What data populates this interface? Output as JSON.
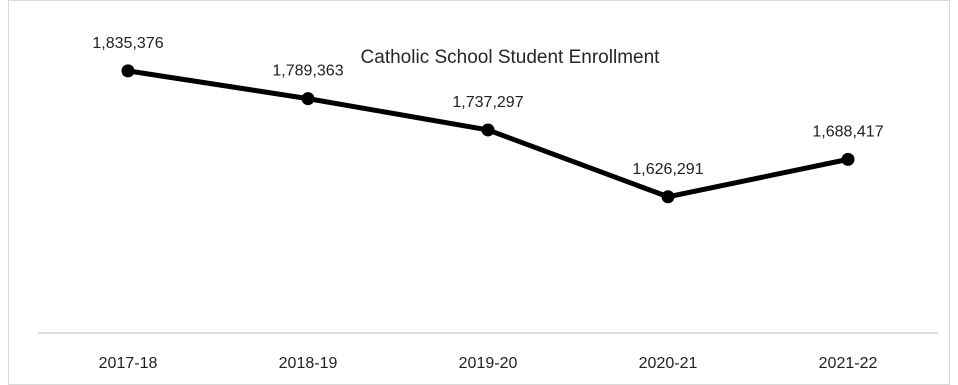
{
  "chart_data": {
    "type": "line",
    "title": "Catholic School Student Enrollment",
    "xlabel": "",
    "ylabel": "",
    "categories": [
      "2017-18",
      "2018-19",
      "2019-20",
      "2020-21",
      "2021-22"
    ],
    "series": [
      {
        "values": [
          1835376,
          1789363,
          1737297,
          1626291,
          1688417
        ],
        "labels": [
          "1,835,376",
          "1,789,363",
          "1,737,297",
          "1,626,291",
          "1,688,417"
        ]
      }
    ],
    "ylim": [
      1400000,
      1900000
    ],
    "grid": false,
    "legend": "none",
    "colors": {
      "line": "#000000",
      "frame": "#d9d9d9",
      "axis": "#bfbfbf"
    }
  }
}
